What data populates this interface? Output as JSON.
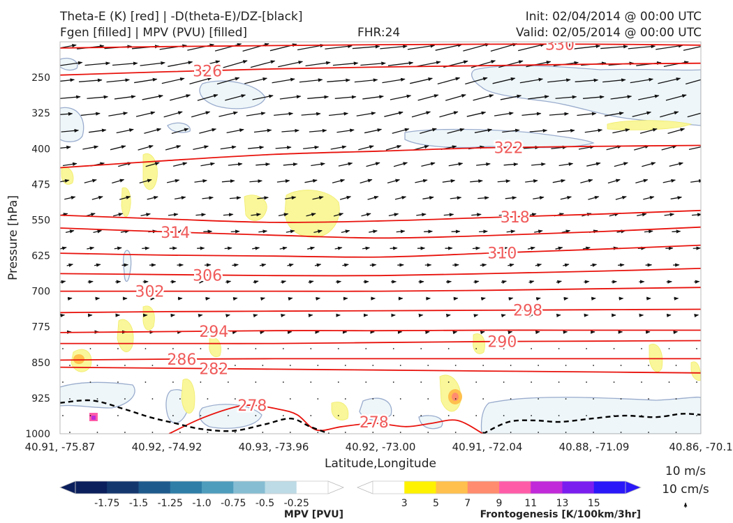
{
  "header": {
    "line1_left": "Theta-E (K) [red] | -D(theta-E)/DZ-[black]",
    "line2_left": "Fgen [filled] | MPV (PVU) [filled]",
    "fhr": "FHR:24",
    "init": "Init: 02/04/2014 @ 00:00 UTC",
    "valid": "Valid: 02/05/2014 @ 00:00 UTC"
  },
  "chart_data": {
    "type": "cross-section",
    "ylabel": "Pressure [hPa]",
    "xlabel": "Latitude,Longitude",
    "y_scale": "inverted",
    "ylim": [
      1000,
      175
    ],
    "y_ticks": [
      250,
      325,
      400,
      475,
      550,
      625,
      700,
      775,
      850,
      925,
      1000
    ],
    "x_ticks": [
      "40.91, -75.87",
      "40.92, -74.92",
      "40.93, -73.96",
      "40.92, -73.00",
      "40.91, -72.04",
      "40.88, -71.09",
      "40.86, -70.1"
    ],
    "theta_e_isolines": [
      {
        "value": 330,
        "label": "330",
        "pressures": [
          188,
          185,
          183,
          181,
          180,
          180,
          182
        ]
      },
      {
        "value": 326,
        "label": "326",
        "pressures": [
          245,
          238,
          232,
          228,
          225,
          222,
          220
        ]
      },
      {
        "value": 322,
        "label": "322",
        "pressures": [
          440,
          425,
          412,
          405,
          398,
          395,
          393
        ]
      },
      {
        "value": 318,
        "label": "318",
        "pressures": [
          540,
          548,
          555,
          552,
          545,
          538,
          530
        ]
      },
      {
        "value": 314,
        "label": "314",
        "pressures": [
          567,
          575,
          582,
          588,
          583,
          575,
          565
        ]
      },
      {
        "value": 310,
        "label": "310",
        "pressures": [
          620,
          624,
          626,
          628,
          620,
          612,
          603
        ]
      },
      {
        "value": 306,
        "label": "306",
        "pressures": [
          663,
          665,
          667,
          667,
          663,
          658,
          652
        ]
      },
      {
        "value": 302,
        "label": "302",
        "pressures": [
          700,
          700,
          700,
          700,
          698,
          695,
          692
        ]
      },
      {
        "value": 298,
        "label": "298",
        "pressures": [
          745,
          743,
          742,
          741,
          740,
          739,
          738
        ]
      },
      {
        "value": 294,
        "label": "294",
        "pressures": [
          787,
          785,
          783,
          783,
          782,
          782,
          782
        ]
      },
      {
        "value": 290,
        "label": "290",
        "pressures": [
          810,
          810,
          810,
          808,
          806,
          805,
          804
        ]
      },
      {
        "value": 286,
        "label": "286",
        "pressures": [
          845,
          843,
          842,
          842,
          842,
          842,
          842
        ]
      },
      {
        "value": 282,
        "label": "282",
        "pressures": [
          860,
          862,
          864,
          866,
          868,
          870,
          872
        ]
      }
    ],
    "stability_zero_contour": [
      {
        "x": [
          0.0,
          0.05,
          0.1,
          0.14,
          0.18,
          0.22,
          0.27,
          0.32,
          0.36,
          0.39,
          0.42
        ],
        "pressures": [
          935,
          930,
          948,
          965,
          978,
          990,
          994,
          980,
          968,
          985,
          1000
        ]
      },
      {
        "x": [
          0.66,
          0.7,
          0.74,
          0.78,
          0.83,
          0.88,
          0.93,
          0.97,
          1.0
        ],
        "pressures": [
          1000,
          975,
          972,
          975,
          968,
          962,
          965,
          958,
          960
        ]
      }
    ],
    "colorbars": [
      {
        "name": "MPV [PVU]",
        "type": "diverging-negative",
        "ticks": [
          "-1.75",
          "-1.5",
          "-1.25",
          "-1.0",
          "-0.75",
          "-0.5",
          "-0.25"
        ],
        "colors": [
          "#0b1f5c",
          "#14386e",
          "#1f5a8c",
          "#2e7ea8",
          "#4f9dbd",
          "#86bdd3",
          "#bcdbe6",
          "#ffffff"
        ]
      },
      {
        "name": "Frontogenesis [K/100km/3hr]",
        "type": "sequential",
        "ticks": [
          "3",
          "5",
          "7",
          "9",
          "11",
          "13",
          "15"
        ],
        "colors": [
          "#ffffff",
          "#fff200",
          "#ffc04d",
          "#ff8c6e",
          "#ff5ca8",
          "#c02ad8",
          "#7a1ef0",
          "#2a18f8"
        ]
      }
    ],
    "reference_vector": {
      "line1": "10 m/s",
      "line2": "10 cm/s"
    }
  }
}
